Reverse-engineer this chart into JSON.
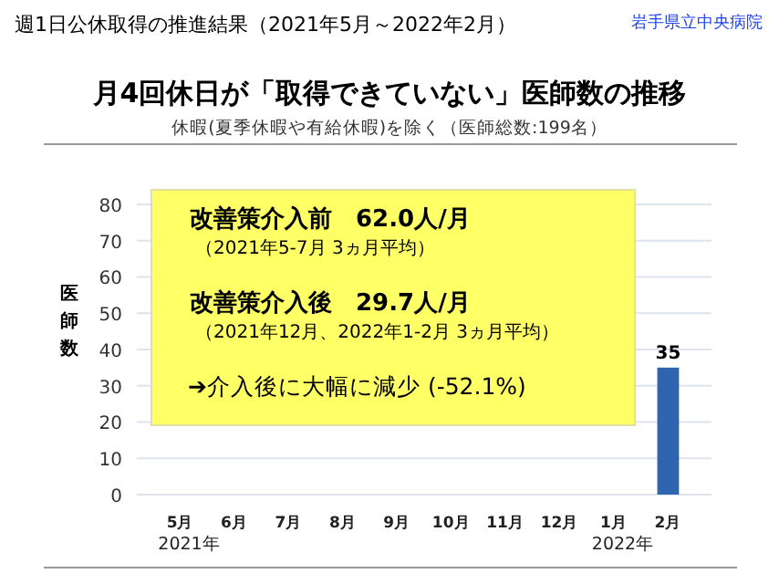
{
  "chart_data": {
    "type": "bar",
    "title": "月4回休日が「取得できていない」医師数の推移",
    "subtitle": "休暇(夏季休暇や有給休暇)を除く（医師総数:199名）",
    "ylabel": "医師数",
    "categories": [
      "5月\n2021年",
      "6月",
      "7月",
      "8月",
      "9月",
      "10月",
      "11月",
      "12月",
      "1月\n2022年",
      "2月"
    ],
    "values": [
      null,
      null,
      null,
      null,
      null,
      null,
      null,
      null,
      null,
      35
    ],
    "color": "#2e64b0",
    "data_labels": true,
    "ylim": [
      0,
      84
    ],
    "yticks": [
      0,
      10,
      20,
      30,
      40,
      50,
      60,
      70,
      80
    ],
    "grid": "y",
    "annotations": [
      "週1日公休取得の推進結果（2021年5月～2022年2月）",
      "岩手県立中央病院",
      "改善策介入前　62.0人/月",
      "（2021年5-7月 3ヵ月平均）",
      "改善策介入後　29.7人/月",
      "（2021年12月、2022年1-2月 3ヵ月平均）",
      "➔介入後に大幅に減少 (-52.1%)"
    ]
  }
}
